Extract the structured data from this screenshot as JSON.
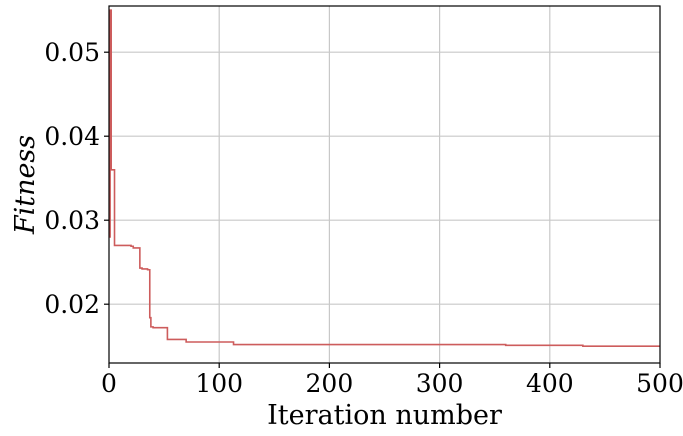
{
  "chart_data": {
    "type": "line",
    "title": "",
    "xlabel": "Iteration number",
    "ylabel": "Fitness",
    "xlim": [
      0,
      500
    ],
    "ylim": [
      0.013,
      0.0555
    ],
    "x_ticks": [
      0,
      100,
      200,
      300,
      400,
      500
    ],
    "y_ticks": [
      0.02,
      0.03,
      0.04,
      0.05
    ],
    "x_tick_labels": [
      "0",
      "100",
      "200",
      "300",
      "400",
      "500"
    ],
    "y_tick_labels": [
      "0.02",
      "0.03",
      "0.04",
      "0.05"
    ],
    "grid": true,
    "series": [
      {
        "color": "#cd5c5c",
        "step": true,
        "x": [
          0,
          1,
          2,
          5,
          20,
          22,
          26,
          28,
          30,
          33,
          35,
          37,
          38,
          40,
          52,
          53,
          68,
          70,
          112,
          113,
          360,
          430,
          500
        ],
        "y": [
          0.028,
          0.055,
          0.036,
          0.027,
          0.0269,
          0.0267,
          0.0267,
          0.0243,
          0.0242,
          0.0242,
          0.0241,
          0.0184,
          0.0173,
          0.0172,
          0.0172,
          0.0158,
          0.0158,
          0.0155,
          0.0155,
          0.0152,
          0.0151,
          0.015,
          0.015
        ]
      }
    ]
  }
}
